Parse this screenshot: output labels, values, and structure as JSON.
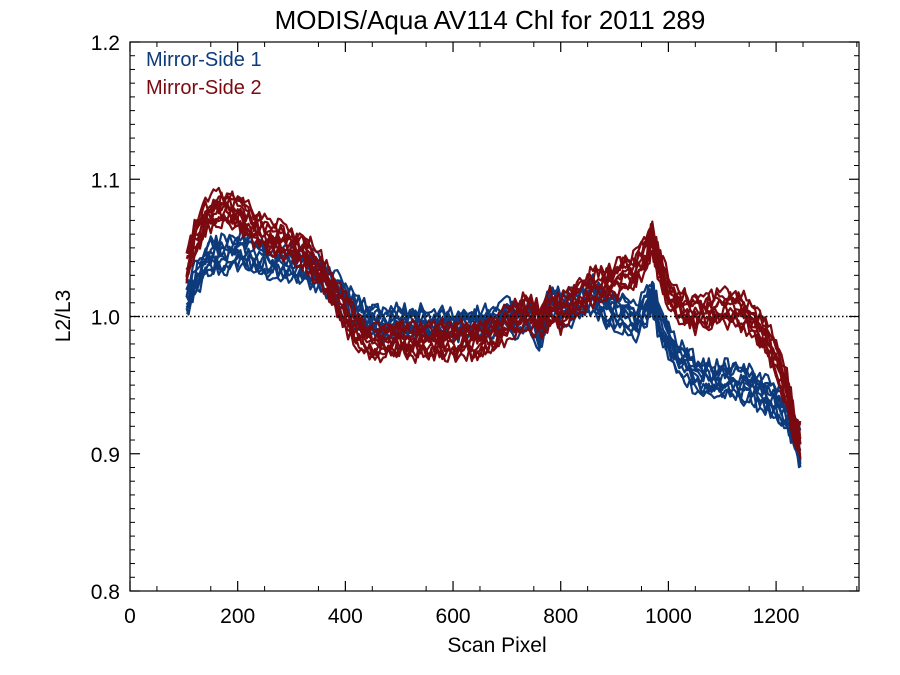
{
  "chart_data": {
    "type": "line",
    "title": "MODIS/Aqua AV114 Chl for 2011 289",
    "xlabel": "Scan Pixel",
    "ylabel": "L2/L3",
    "xlim": [
      0,
      1354
    ],
    "ylim": [
      0.8,
      1.2
    ],
    "xticks": [
      "0",
      "200",
      "400",
      "600",
      "800",
      "1000",
      "1200"
    ],
    "yticks": [
      "0.8",
      "0.9",
      "1.0",
      "1.1",
      "1.2"
    ],
    "reference_line": 1.0,
    "legend_position": "top-left",
    "colors": {
      "Mirror-Side 1": "#0d3a7a",
      "Mirror-Side 2": "#7a0a10"
    },
    "series": [
      {
        "name": "Mirror-Side 1",
        "color": "#0d3a7a",
        "line_count": 10,
        "x": [
          105,
          120,
          140,
          160,
          180,
          200,
          220,
          240,
          260,
          280,
          300,
          320,
          340,
          360,
          380,
          400,
          420,
          440,
          460,
          480,
          500,
          520,
          540,
          560,
          580,
          600,
          620,
          640,
          660,
          680,
          700,
          720,
          740,
          760,
          780,
          800,
          820,
          840,
          860,
          880,
          900,
          920,
          940,
          960,
          970,
          980,
          1000,
          1020,
          1040,
          1060,
          1080,
          1100,
          1120,
          1140,
          1160,
          1180,
          1200,
          1220,
          1235,
          1245
        ],
        "values": [
          1.012,
          1.025,
          1.04,
          1.045,
          1.044,
          1.048,
          1.047,
          1.043,
          1.041,
          1.039,
          1.038,
          1.036,
          1.034,
          1.028,
          1.021,
          1.012,
          1.004,
          0.998,
          0.995,
          0.993,
          0.997,
          0.994,
          0.996,
          0.993,
          0.995,
          0.993,
          0.996,
          0.994,
          0.997,
          0.996,
          1.003,
          0.996,
          1.003,
          0.985,
          1.012,
          1.005,
          1.006,
          1.011,
          1.015,
          1.008,
          1.004,
          1.001,
          0.995,
          1.008,
          1.016,
          0.999,
          0.982,
          0.968,
          0.962,
          0.955,
          0.953,
          0.954,
          0.952,
          0.951,
          0.948,
          0.943,
          0.936,
          0.928,
          0.914,
          0.903
        ],
        "spread": 0.011
      },
      {
        "name": "Mirror-Side 2",
        "color": "#7a0a10",
        "line_count": 10,
        "x": [
          105,
          120,
          140,
          160,
          180,
          200,
          220,
          240,
          260,
          280,
          300,
          320,
          340,
          360,
          380,
          400,
          420,
          440,
          460,
          480,
          500,
          520,
          540,
          560,
          580,
          600,
          620,
          640,
          660,
          680,
          700,
          720,
          740,
          760,
          780,
          800,
          820,
          840,
          860,
          880,
          900,
          920,
          940,
          960,
          970,
          980,
          1000,
          1020,
          1040,
          1060,
          1080,
          1100,
          1120,
          1140,
          1160,
          1180,
          1200,
          1220,
          1235,
          1245
        ],
        "values": [
          1.035,
          1.055,
          1.072,
          1.078,
          1.08,
          1.077,
          1.069,
          1.062,
          1.058,
          1.056,
          1.052,
          1.047,
          1.04,
          1.03,
          1.016,
          1.003,
          0.99,
          0.982,
          0.98,
          0.982,
          0.984,
          0.982,
          0.983,
          0.981,
          0.983,
          0.982,
          0.983,
          0.982,
          0.985,
          0.986,
          0.996,
          1.001,
          1.004,
          0.996,
          1.006,
          1.002,
          1.008,
          1.015,
          1.022,
          1.023,
          1.026,
          1.03,
          1.034,
          1.048,
          1.06,
          1.04,
          1.018,
          1.008,
          1.002,
          1.003,
          1.005,
          1.007,
          1.005,
          1.003,
          0.996,
          0.986,
          0.97,
          0.946,
          0.918,
          0.91
        ],
        "spread": 0.011
      }
    ]
  }
}
